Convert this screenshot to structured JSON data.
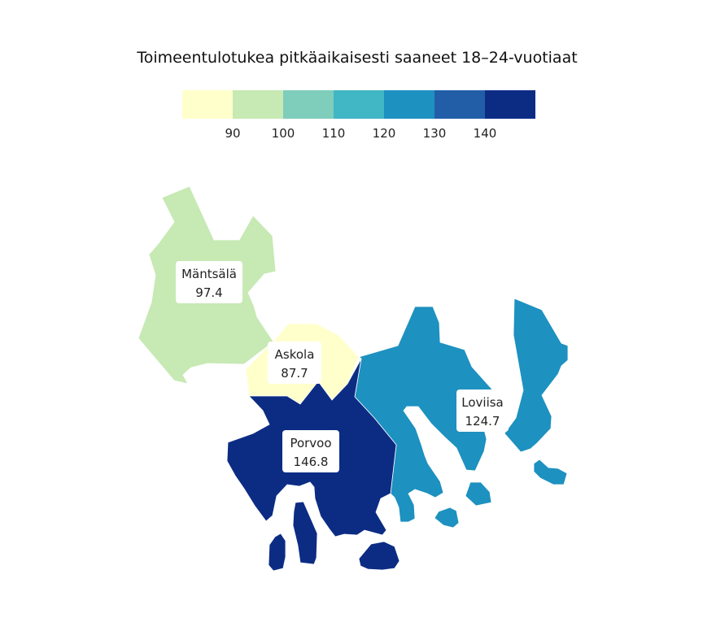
{
  "map": {
    "title": "Toimeentulotukea pitkäaikaisesti saaneet 18–24-vuotiaat",
    "legend": {
      "breaks": [
        90,
        100,
        110,
        120,
        130,
        140
      ],
      "colors": [
        "#ffffcc",
        "#c7e9b4",
        "#7fcdbb",
        "#41b6c4",
        "#1d91c0",
        "#225ea8",
        "#0c2c84"
      ]
    },
    "regions": [
      {
        "name": "Mäntsälä",
        "value": 97.4,
        "value_label": "97.4",
        "color": "#c7e9b4"
      },
      {
        "name": "Askola",
        "value": 87.7,
        "value_label": "87.7",
        "color": "#ffffcc"
      },
      {
        "name": "Loviisa",
        "value": 124.7,
        "value_label": "124.7",
        "color": "#1d91c0"
      },
      {
        "name": "Porvoo",
        "value": 146.8,
        "value_label": "146.8",
        "color": "#0c2c84"
      }
    ]
  }
}
